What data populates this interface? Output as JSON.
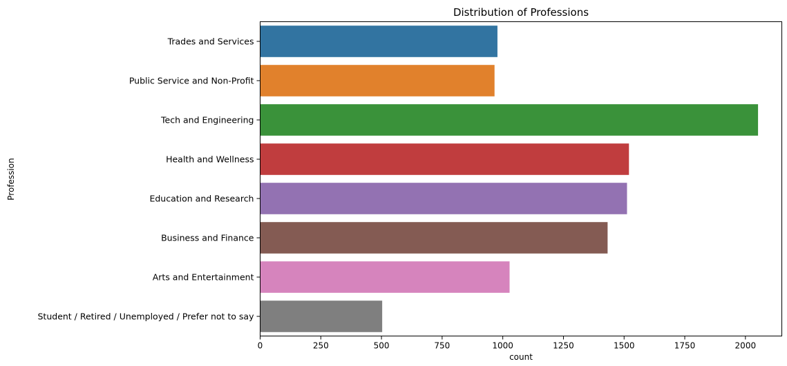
{
  "chart_data": {
    "type": "bar",
    "orientation": "horizontal",
    "title": "Distribution of Professions",
    "xlabel": "count",
    "ylabel": "Profession",
    "xlim": [
      0,
      2150
    ],
    "xticks": [
      0,
      250,
      500,
      750,
      1000,
      1250,
      1500,
      1750,
      2000
    ],
    "grid": false,
    "legend": "none",
    "categories": [
      "Trades and Services",
      "Public Service and Non-Profit",
      "Tech and Engineering",
      "Health and Wellness",
      "Education and Research",
      "Business and Finance",
      "Arts and Entertainment",
      "Student / Retired / Unemployed / Prefer not to say"
    ],
    "values": [
      978,
      966,
      2052,
      1520,
      1512,
      1432,
      1028,
      503
    ],
    "colors": [
      "#3274a1",
      "#e1812c",
      "#3a923a",
      "#c03d3e",
      "#9372b2",
      "#845b53",
      "#d684bd",
      "#7f7f7f"
    ]
  }
}
